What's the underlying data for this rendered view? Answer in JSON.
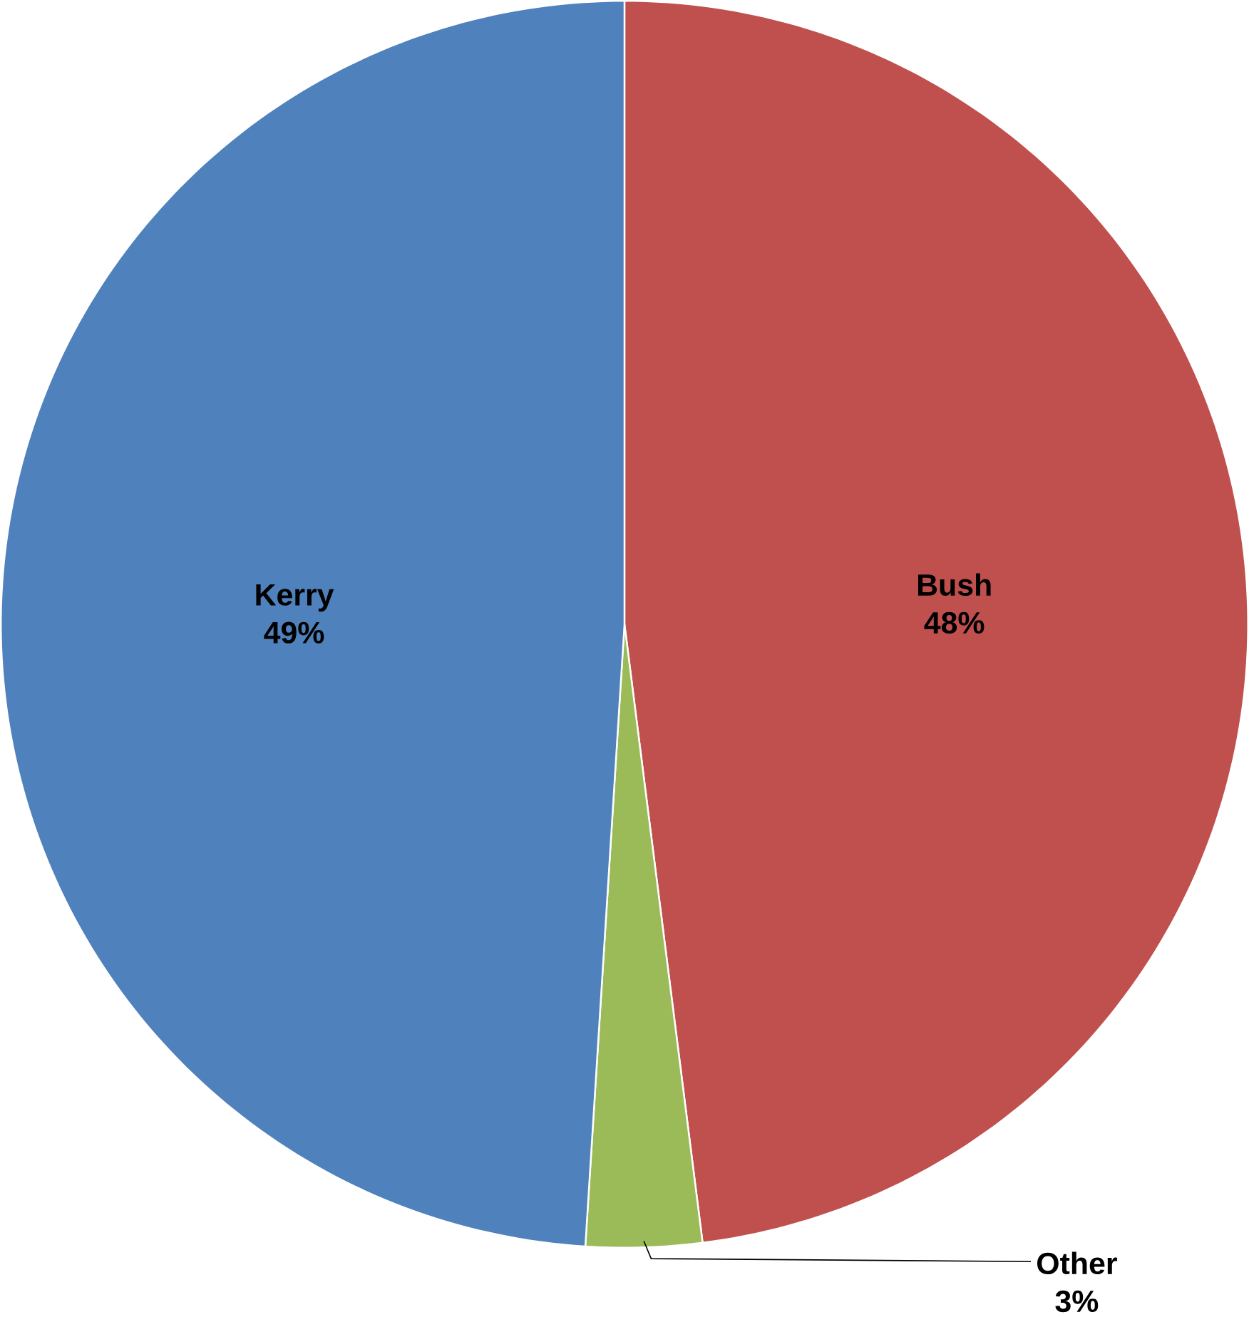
{
  "chart_data": {
    "type": "pie",
    "categories": [
      "Bush",
      "Other",
      "Kerry"
    ],
    "values": [
      48,
      3,
      49
    ],
    "value_labels": [
      "48%",
      "3%",
      "49%"
    ],
    "colors": [
      "#c0504d",
      "#9bbb59",
      "#4f81bd"
    ]
  }
}
